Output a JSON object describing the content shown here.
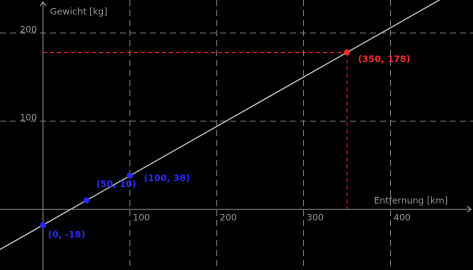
{
  "chart_data": {
    "type": "scatter",
    "x_label": "Entfernung [km]",
    "y_label": "Gewicht [kg]",
    "x": [
      0,
      50,
      100,
      350
    ],
    "values": [
      -18,
      10,
      38,
      178
    ],
    "value_labels": [
      "(0, -18)",
      "(50, 10)",
      "(100, 38)",
      "(350, 178)"
    ],
    "colors": [
      "#2a2aff",
      "#2a2aff",
      "#2a2aff",
      "#ff2a2a"
    ],
    "line_color": "#bdbdbd",
    "xlim": [
      -49.5,
      495
    ],
    "ylim": [
      -69,
      237.5
    ],
    "xticks": [
      100,
      200,
      300,
      400
    ],
    "yticks": [
      100,
      200
    ],
    "grid": true
  }
}
